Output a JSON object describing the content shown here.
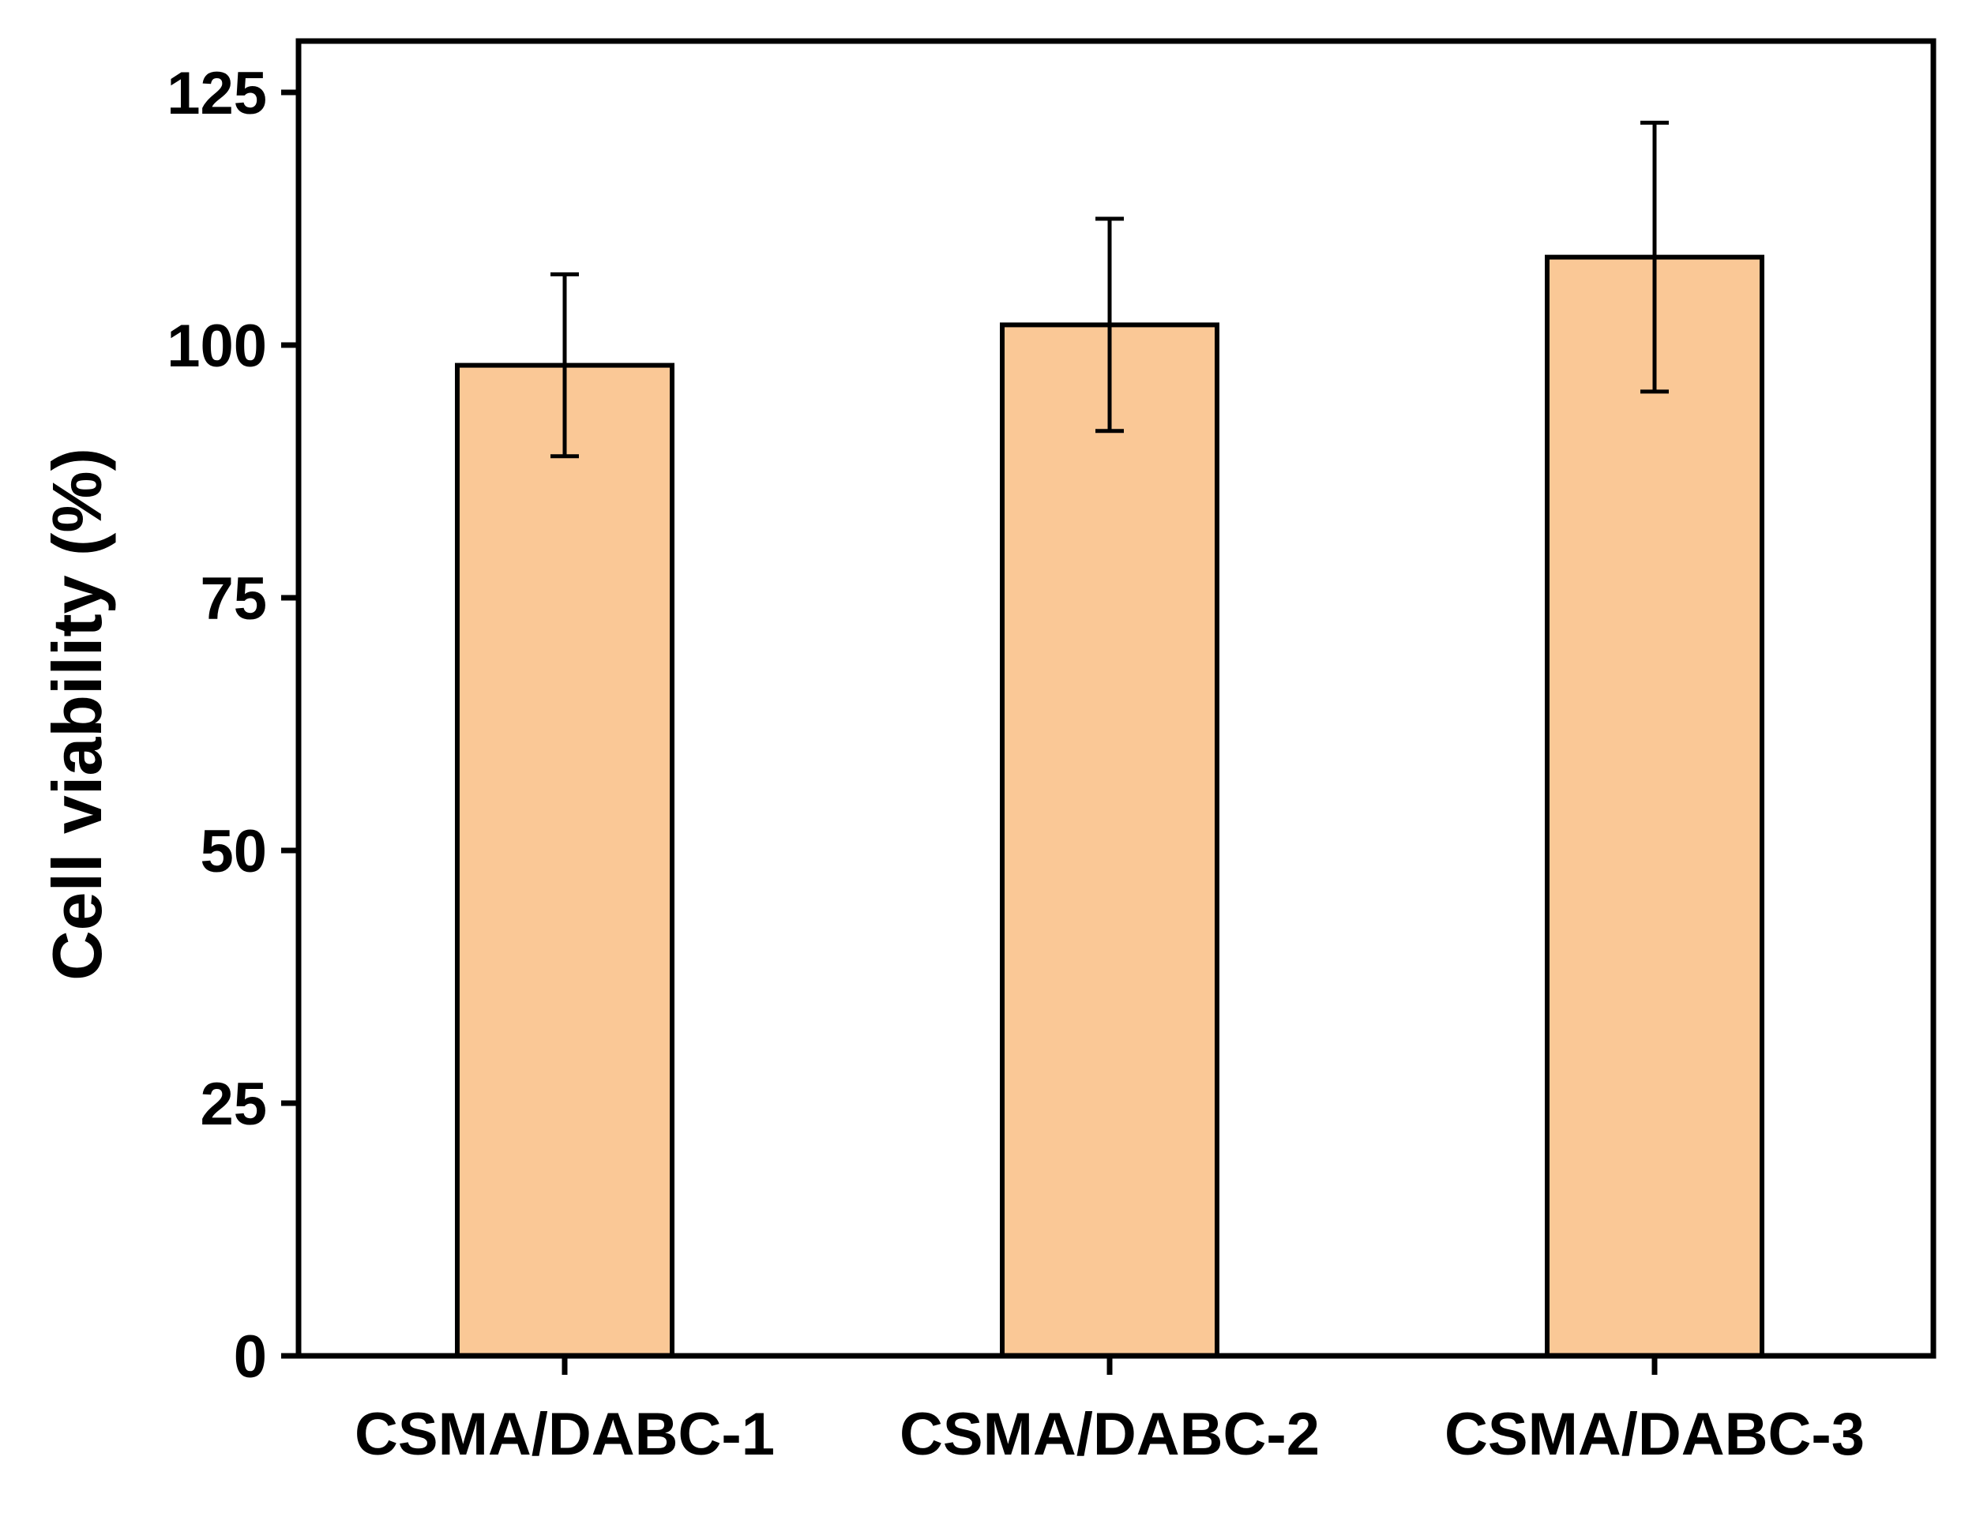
{
  "chart_data": {
    "type": "bar",
    "title": "",
    "xlabel": "",
    "ylabel": "Cell viability (%)",
    "categories": [
      "CSMA/DABC-1",
      "CSMA/DABC-2",
      "CSMA/DABC-3"
    ],
    "values": [
      98,
      102,
      108.7
    ],
    "errors": [
      9,
      10.5,
      13.3
    ],
    "ylim": [
      0,
      130
    ],
    "yticks": [
      0,
      25,
      50,
      75,
      100,
      125
    ],
    "ytick_labels": [
      "0",
      "25",
      "50",
      "75",
      "100",
      "125"
    ],
    "grid": false,
    "legend": "none",
    "colors": {
      "bar_fill": "#FAC896",
      "bar_edge": "#000000",
      "axis": "#000000",
      "background": "#FFFFFF"
    }
  }
}
